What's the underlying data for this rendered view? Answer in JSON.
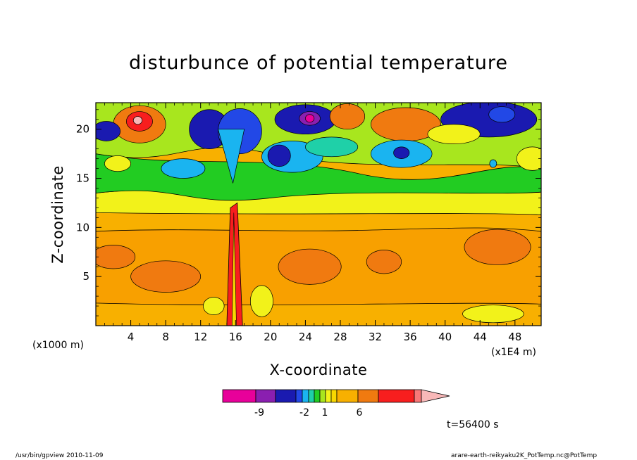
{
  "chart_data": {
    "type": "heatmap",
    "title": "disturbunce of potential temperature",
    "xlabel": "X-coordinate",
    "ylabel": "Z-coordinate",
    "x_unit_left": "(x1000 m)",
    "x_unit_right": "(x1E4 m)",
    "xlim": [
      0,
      51
    ],
    "ylim": [
      0,
      22.7
    ],
    "xticks": [
      4,
      8,
      12,
      16,
      20,
      24,
      28,
      32,
      36,
      40,
      44,
      48
    ],
    "yticks": [
      5,
      10,
      15,
      20
    ],
    "colorbar": {
      "levels": [
        "-9",
        "-2",
        "1",
        "6"
      ],
      "colors": [
        "#e8009a",
        "#8a1fb0",
        "#1a1ab0",
        "#2248e6",
        "#1ab4f0",
        "#1fd0a8",
        "#22cc22",
        "#a8e61e",
        "#f2f21a",
        "#f8d800",
        "#f8b000",
        "#f07a10",
        "#f81e1e",
        "#f87878",
        "#f8b8b8"
      ]
    },
    "time_label": "t=56400 s"
  },
  "footer": {
    "left": "/usr/bin/gpview   2010-11-09",
    "right": "arare-earth-reikyaku2K_PotTemp.nc@PotTemp"
  }
}
